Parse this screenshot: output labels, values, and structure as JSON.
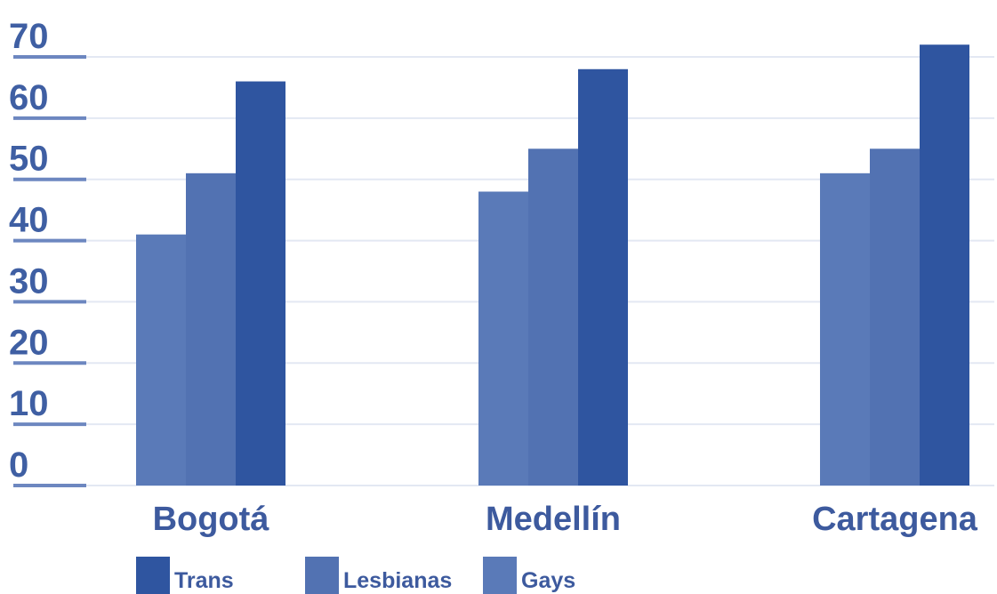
{
  "chart_data": {
    "type": "bar",
    "categories": [
      "Bogotá",
      "Medellín",
      "Cartagena"
    ],
    "series": [
      {
        "name": "Gays",
        "color": "#5a7ab8",
        "values": [
          41,
          48,
          51
        ]
      },
      {
        "name": "Lesbianas",
        "color": "#5272b2",
        "values": [
          51,
          55,
          55
        ]
      },
      {
        "name": "Trans",
        "color": "#2f55a0",
        "values": [
          66,
          68,
          72
        ]
      }
    ],
    "legend_order": [
      "Trans",
      "Lesbianas",
      "Gays"
    ],
    "yticks": [
      "0",
      "10",
      "20",
      "30",
      "40",
      "50",
      "60",
      "70"
    ],
    "ylim": [
      0,
      70
    ],
    "grid": true,
    "legend_position": "bottom",
    "colors": {
      "tick_text": "#3f5fa3",
      "tick_mark": "#6d87c0",
      "grid": "#e3e8f3",
      "label_text": "#3d5a9e"
    }
  }
}
